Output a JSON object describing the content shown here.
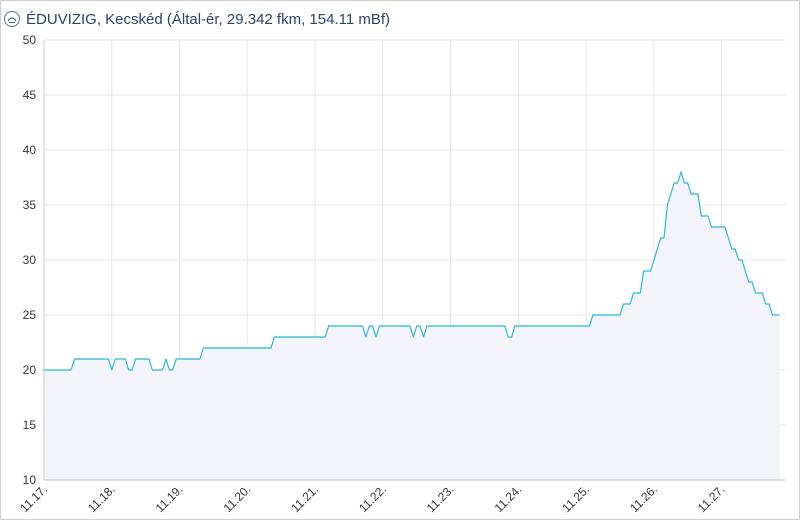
{
  "header": {
    "title": "ÉDUVIZIG, Kecskéd (Által-ér, 29.342 fkm, 154.11 mBf)",
    "logo_icon": "eduvizig-logo-icon"
  },
  "chart_data": {
    "type": "area",
    "title": "ÉDUVIZIG, Kecskéd (Által-ér, 29.342 fkm, 154.11 mBf)",
    "xlabel": "",
    "ylabel": "",
    "ylim": [
      10,
      50
    ],
    "yticks": [
      10,
      15,
      20,
      25,
      30,
      35,
      40,
      45,
      50
    ],
    "xlim": [
      0,
      10.95
    ],
    "xticks": [
      {
        "value": 0,
        "label": "11.17."
      },
      {
        "value": 1,
        "label": "11.18."
      },
      {
        "value": 2,
        "label": "11.19."
      },
      {
        "value": 3,
        "label": "11.20."
      },
      {
        "value": 4,
        "label": "11.21."
      },
      {
        "value": 5,
        "label": "11.22."
      },
      {
        "value": 6,
        "label": "11.23."
      },
      {
        "value": 7,
        "label": "11.24."
      },
      {
        "value": 8,
        "label": "11.25."
      },
      {
        "value": 9,
        "label": "11.26."
      },
      {
        "value": 10,
        "label": "11.27."
      }
    ],
    "x_unit": "days since 11.17.",
    "grid": true,
    "line_color": "#29b6d6",
    "fill_color": "#f3f4f9",
    "series": [
      {
        "values": [
          [
            -0.02,
            20
          ],
          [
            0.4,
            20
          ],
          [
            0.45,
            21
          ],
          [
            0.95,
            21
          ],
          [
            1.0,
            20
          ],
          [
            1.05,
            21
          ],
          [
            1.2,
            21
          ],
          [
            1.25,
            20
          ],
          [
            1.3,
            20
          ],
          [
            1.35,
            21
          ],
          [
            1.55,
            21
          ],
          [
            1.6,
            20
          ],
          [
            1.75,
            20
          ],
          [
            1.8,
            21
          ],
          [
            1.85,
            20
          ],
          [
            1.9,
            20
          ],
          [
            1.95,
            21
          ],
          [
            2.3,
            21
          ],
          [
            2.35,
            22
          ],
          [
            3.35,
            22
          ],
          [
            3.4,
            23
          ],
          [
            4.15,
            23
          ],
          [
            4.2,
            24
          ],
          [
            4.7,
            24
          ],
          [
            4.75,
            23
          ],
          [
            4.8,
            24
          ],
          [
            4.85,
            24
          ],
          [
            4.9,
            23
          ],
          [
            4.95,
            24
          ],
          [
            5.4,
            24
          ],
          [
            5.45,
            23
          ],
          [
            5.5,
            24
          ],
          [
            5.55,
            24
          ],
          [
            5.6,
            23
          ],
          [
            5.65,
            24
          ],
          [
            6.8,
            24
          ],
          [
            6.85,
            23
          ],
          [
            6.9,
            23
          ],
          [
            6.95,
            24
          ],
          [
            8.05,
            24
          ],
          [
            8.1,
            25
          ],
          [
            8.5,
            25
          ],
          [
            8.55,
            26
          ],
          [
            8.65,
            26
          ],
          [
            8.7,
            27
          ],
          [
            8.8,
            27
          ],
          [
            8.85,
            29
          ],
          [
            8.95,
            29
          ],
          [
            9.0,
            30
          ],
          [
            9.05,
            31
          ],
          [
            9.1,
            32
          ],
          [
            9.15,
            32
          ],
          [
            9.2,
            35
          ],
          [
            9.25,
            36
          ],
          [
            9.3,
            37
          ],
          [
            9.35,
            37
          ],
          [
            9.4,
            38
          ],
          [
            9.45,
            37
          ],
          [
            9.5,
            37
          ],
          [
            9.55,
            36
          ],
          [
            9.65,
            36
          ],
          [
            9.7,
            34
          ],
          [
            9.8,
            34
          ],
          [
            9.85,
            33
          ],
          [
            10.05,
            33
          ],
          [
            10.1,
            32
          ],
          [
            10.15,
            31
          ],
          [
            10.2,
            31
          ],
          [
            10.25,
            30
          ],
          [
            10.3,
            30
          ],
          [
            10.35,
            29
          ],
          [
            10.4,
            28
          ],
          [
            10.45,
            28
          ],
          [
            10.5,
            27
          ],
          [
            10.6,
            27
          ],
          [
            10.65,
            26
          ],
          [
            10.7,
            26
          ],
          [
            10.75,
            25
          ],
          [
            10.85,
            25
          ]
        ]
      }
    ]
  }
}
